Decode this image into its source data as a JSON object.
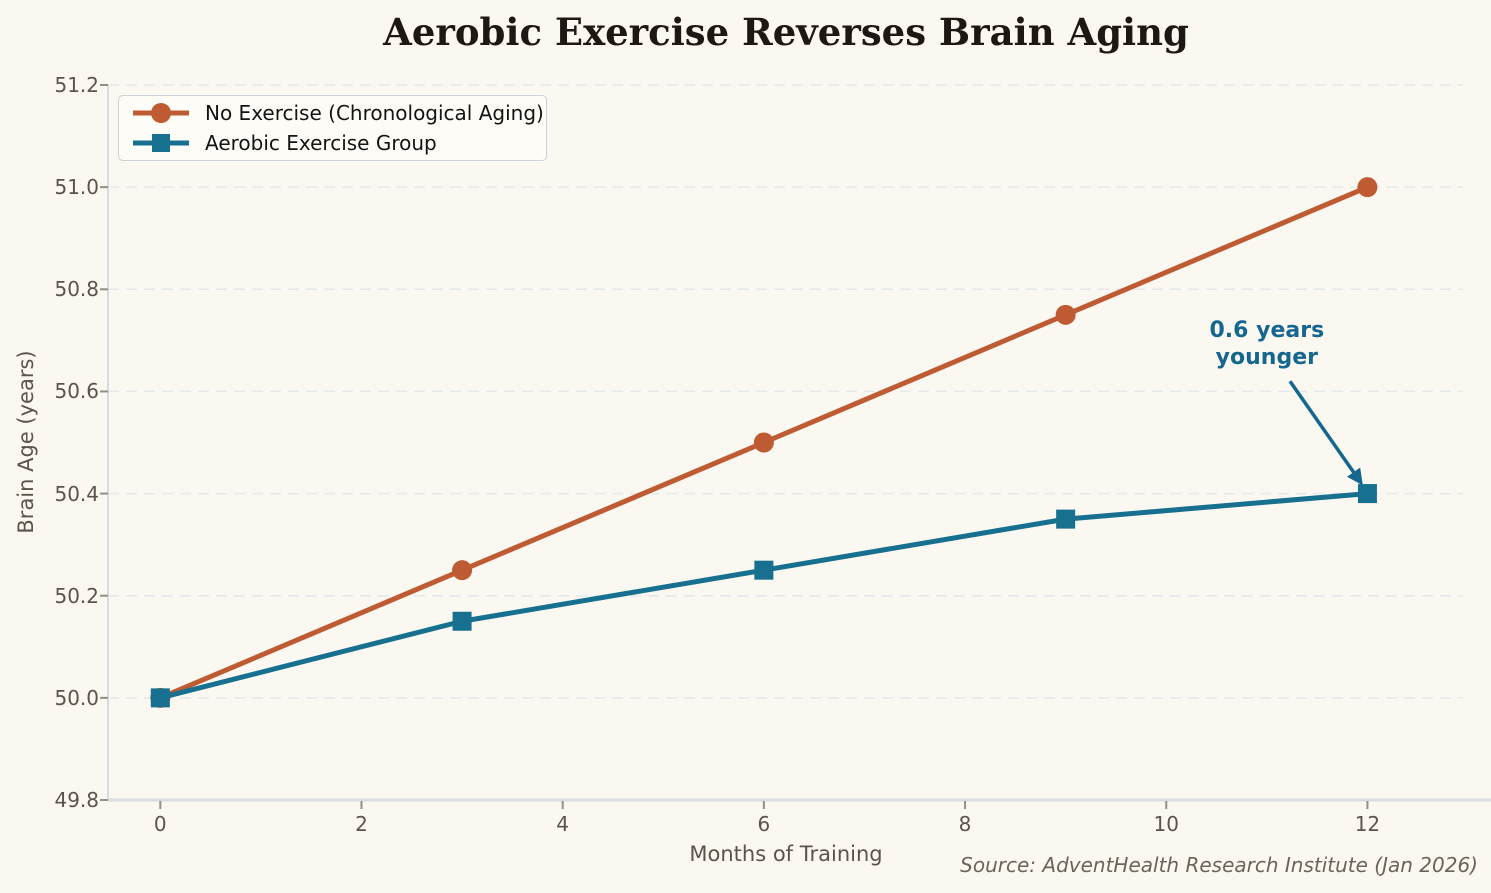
{
  "page": {
    "background_color": "#faf8f0",
    "source_note": "Source: AdventHealth Research Institute (Jan 2026)"
  },
  "chart_data": {
    "type": "line",
    "title": "Aerobic Exercise Reverses Brain Aging",
    "xlabel": "Months of Training",
    "ylabel": "Brain Age (years)",
    "x": [
      0,
      3,
      6,
      9,
      12
    ],
    "series": [
      {
        "name": "No Exercise (Chronological Aging)",
        "color": "#bf5b33",
        "marker": "circle",
        "values": [
          50.0,
          50.25,
          50.5,
          50.75,
          51.0
        ]
      },
      {
        "name": "Aerobic Exercise Group",
        "color": "#17708f",
        "marker": "square",
        "values": [
          50.0,
          50.15,
          50.25,
          50.35,
          50.4
        ]
      }
    ],
    "xlim": [
      -0.52,
      12.95
    ],
    "ylim": [
      49.8,
      51.2
    ],
    "xticks": [
      0,
      2,
      4,
      6,
      8,
      10,
      12
    ],
    "yticks": [
      49.8,
      50.0,
      50.2,
      50.4,
      50.6,
      50.8,
      51.0,
      51.2
    ],
    "grid": "horizontal-dashed",
    "grid_color": "#e4e9ec",
    "spine_color": "#d7dbe0",
    "tick_color": "#958f84",
    "legend_position": "upper-left",
    "annotation": {
      "line1": "0.6 years",
      "line2": "younger",
      "color": "#15678f",
      "text_x": 11.0,
      "text_y": 50.69,
      "arrow": {
        "x1": 11.23,
        "y1": 50.62,
        "x2": 11.94,
        "y2": 50.42
      }
    }
  }
}
